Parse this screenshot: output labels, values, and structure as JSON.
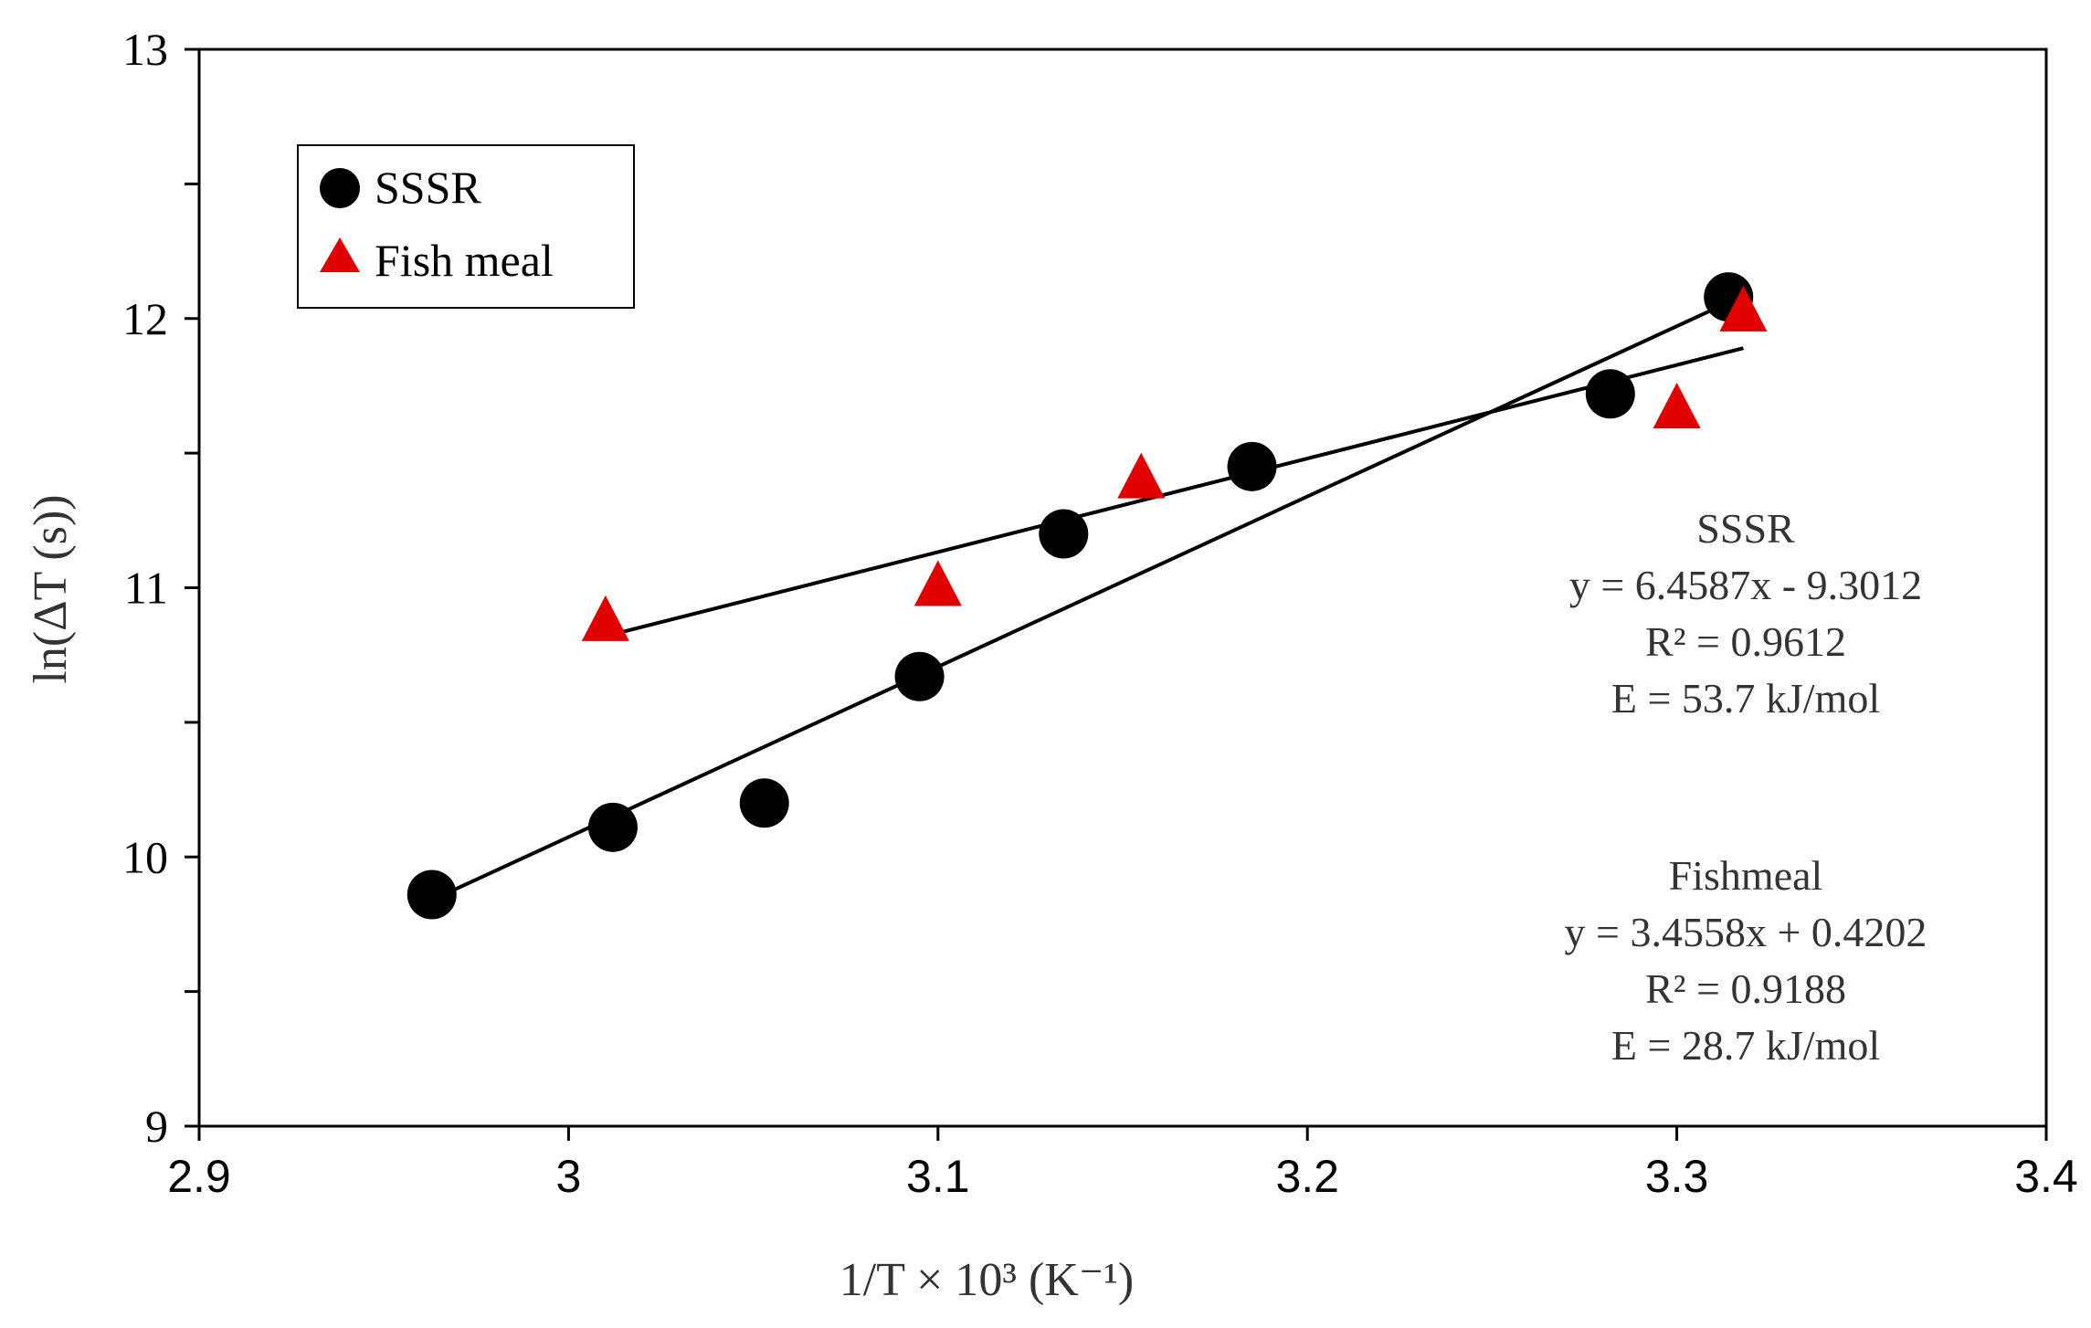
{
  "chart_data": {
    "type": "scatter",
    "xlabel": "1/T × 10³ (K⁻¹)",
    "ylabel": "ln(ΔT (s))",
    "xlim": [
      2.9,
      3.4
    ],
    "ylim": [
      9,
      13
    ],
    "x_ticks": [
      2.9,
      3,
      3.1,
      3.2,
      3.3,
      3.4
    ],
    "x_tick_labels": [
      "2.9",
      "3",
      "3.1",
      "3.2",
      "3.3",
      "3.4"
    ],
    "y_ticks": [
      9,
      10,
      11,
      12,
      13
    ],
    "y_tick_labels": [
      "9",
      "10",
      "11",
      "12",
      "13"
    ],
    "y_minor_step": 0.5,
    "grid": false,
    "legend_position": "top-left",
    "series": [
      {
        "name": "SSSR",
        "marker": "circle",
        "color": "#000000",
        "x": [
          2.963,
          3.012,
          3.053,
          3.095,
          3.134,
          3.185,
          3.282,
          3.314
        ],
        "y": [
          9.86,
          10.11,
          10.2,
          10.67,
          11.2,
          11.45,
          11.72,
          12.08
        ],
        "fit_line": {
          "x0": 2.963,
          "y0": 9.84,
          "x1": 3.314,
          "y1": 12.06
        }
      },
      {
        "name": "Fish meal",
        "marker": "triangle",
        "color": "#e00000",
        "x": [
          3.01,
          3.1,
          3.155,
          3.3,
          3.318
        ],
        "y": [
          10.87,
          11.0,
          11.4,
          11.66,
          12.02
        ],
        "fit_line": {
          "x0": 3.01,
          "y0": 10.82,
          "x1": 3.318,
          "y1": 11.89
        }
      }
    ],
    "annotations": [
      {
        "id": "sssr",
        "lines": [
          "SSSR",
          "y = 6.4587x - 9.3012",
          "R² = 0.9612",
          "E = 53.7 kJ/mol"
        ]
      },
      {
        "id": "fishmeal",
        "lines": [
          "Fishmeal",
          "y = 3.4558x + 0.4202",
          "R² = 0.9188",
          "E = 28.7 kJ/mol"
        ]
      }
    ]
  }
}
